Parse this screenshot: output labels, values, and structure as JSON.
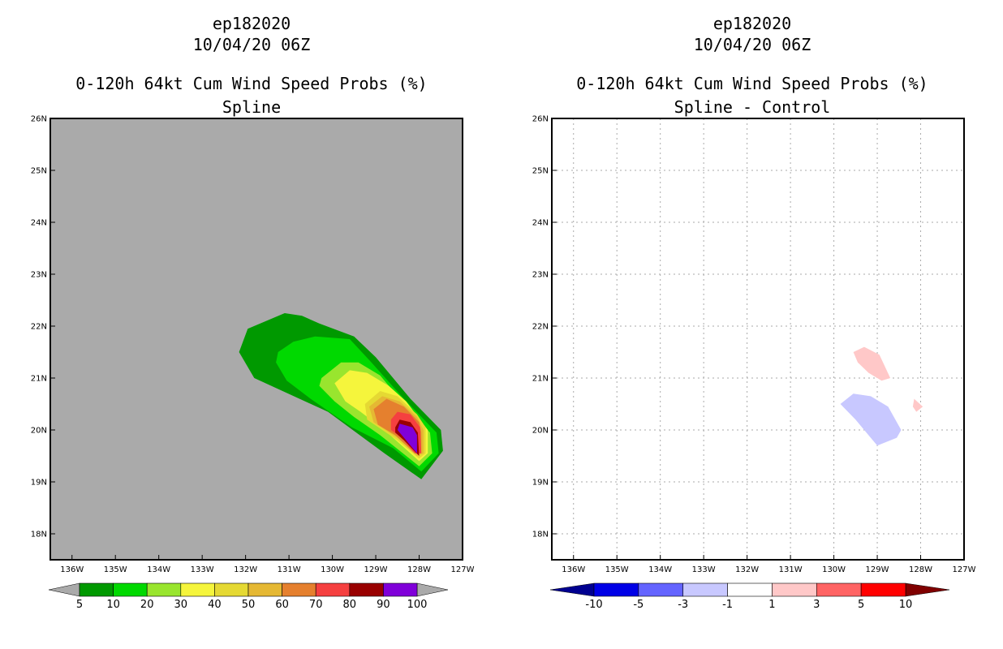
{
  "chart_data": [
    {
      "type": "contour",
      "title_line1": "ep182020",
      "title_line2": "10/04/20 06Z",
      "title_line3": "0-120h 64kt Cum Wind Speed Probs (%)",
      "subtitle": "Spline",
      "background_color": "#aaaaaa",
      "xlim": [
        -136.5,
        -127
      ],
      "ylim": [
        17.5,
        26
      ],
      "x_ticks": [
        {
          "value": -136,
          "label": "136W"
        },
        {
          "value": -135,
          "label": "135W"
        },
        {
          "value": -134,
          "label": "134W"
        },
        {
          "value": -133,
          "label": "133W"
        },
        {
          "value": -132,
          "label": "132W"
        },
        {
          "value": -131,
          "label": "131W"
        },
        {
          "value": -130,
          "label": "130W"
        },
        {
          "value": -129,
          "label": "129W"
        },
        {
          "value": -128,
          "label": "128W"
        },
        {
          "value": -127,
          "label": "127W"
        }
      ],
      "y_ticks": [
        {
          "value": 18,
          "label": "18N"
        },
        {
          "value": 19,
          "label": "19N"
        },
        {
          "value": 20,
          "label": "20N"
        },
        {
          "value": 21,
          "label": "21N"
        },
        {
          "value": 22,
          "label": "22N"
        },
        {
          "value": 23,
          "label": "23N"
        },
        {
          "value": 24,
          "label": "24N"
        },
        {
          "value": 25,
          "label": "25N"
        },
        {
          "value": 26,
          "label": "26N"
        }
      ],
      "grid": false,
      "contours": [
        {
          "level": 5,
          "color": "#009900",
          "points": [
            [
              -131.95,
              21.95
            ],
            [
              -131.1,
              22.25
            ],
            [
              -130.7,
              22.2
            ],
            [
              -130.3,
              22.05
            ],
            [
              -129.5,
              21.8
            ],
            [
              -129.0,
              21.4
            ],
            [
              -128.2,
              20.6
            ],
            [
              -127.5,
              20.0
            ],
            [
              -127.45,
              19.6
            ],
            [
              -127.95,
              19.05
            ],
            [
              -128.8,
              19.55
            ],
            [
              -130.1,
              20.35
            ],
            [
              -131.8,
              21.0
            ],
            [
              -132.15,
              21.5
            ]
          ]
        },
        {
          "level": 10,
          "color": "#00d900",
          "points": [
            [
              -131.25,
              21.5
            ],
            [
              -130.9,
              21.7
            ],
            [
              -130.4,
              21.8
            ],
            [
              -129.6,
              21.75
            ],
            [
              -129.1,
              21.3
            ],
            [
              -128.35,
              20.6
            ],
            [
              -127.6,
              19.95
            ],
            [
              -127.55,
              19.55
            ],
            [
              -127.95,
              19.2
            ],
            [
              -128.6,
              19.65
            ],
            [
              -129.55,
              20.05
            ],
            [
              -130.5,
              20.6
            ],
            [
              -131.05,
              20.95
            ],
            [
              -131.3,
              21.3
            ]
          ]
        },
        {
          "level": 20,
          "color": "#99e52e",
          "points": [
            [
              -130.25,
              21.0
            ],
            [
              -129.8,
              21.3
            ],
            [
              -129.4,
              21.3
            ],
            [
              -128.9,
              21.05
            ],
            [
              -128.45,
              20.6
            ],
            [
              -127.75,
              19.95
            ],
            [
              -127.7,
              19.55
            ],
            [
              -128.0,
              19.3
            ],
            [
              -128.9,
              19.9
            ],
            [
              -129.5,
              20.25
            ],
            [
              -129.95,
              20.55
            ],
            [
              -130.3,
              20.85
            ]
          ]
        },
        {
          "level": 30,
          "color": "#f5f53c",
          "points": [
            [
              -129.95,
              20.9
            ],
            [
              -129.6,
              21.15
            ],
            [
              -129.2,
              21.1
            ],
            [
              -128.7,
              20.85
            ],
            [
              -128.3,
              20.55
            ],
            [
              -127.8,
              20.0
            ],
            [
              -127.8,
              19.55
            ],
            [
              -128.0,
              19.4
            ],
            [
              -128.8,
              20.0
            ],
            [
              -129.35,
              20.35
            ],
            [
              -129.7,
              20.55
            ]
          ]
        },
        {
          "level": 40,
          "color": "#e5d933",
          "points": [
            [
              -129.25,
              20.5
            ],
            [
              -128.9,
              20.75
            ],
            [
              -128.5,
              20.65
            ],
            [
              -128.05,
              20.3
            ],
            [
              -127.85,
              20.05
            ],
            [
              -127.85,
              19.55
            ],
            [
              -128.0,
              19.45
            ],
            [
              -128.5,
              19.8
            ],
            [
              -129.2,
              20.2
            ]
          ]
        },
        {
          "level": 50,
          "color": "#e5b833",
          "points": [
            [
              -129.15,
              20.45
            ],
            [
              -128.85,
              20.65
            ],
            [
              -128.45,
              20.55
            ],
            [
              -128.05,
              20.25
            ],
            [
              -127.9,
              20.0
            ],
            [
              -127.9,
              19.55
            ],
            [
              -128.05,
              19.5
            ],
            [
              -128.5,
              19.85
            ],
            [
              -129.05,
              20.15
            ]
          ]
        },
        {
          "level": 60,
          "color": "#e5802e",
          "points": [
            [
              -129.05,
              20.4
            ],
            [
              -128.75,
              20.6
            ],
            [
              -128.35,
              20.45
            ],
            [
              -128.0,
              20.15
            ],
            [
              -127.95,
              19.95
            ],
            [
              -127.95,
              19.55
            ],
            [
              -128.1,
              19.55
            ],
            [
              -128.55,
              19.9
            ],
            [
              -128.95,
              20.1
            ]
          ]
        },
        {
          "level": 70,
          "color": "#f54040",
          "points": [
            [
              -128.65,
              20.2
            ],
            [
              -128.5,
              20.35
            ],
            [
              -128.2,
              20.3
            ],
            [
              -127.98,
              20.05
            ],
            [
              -127.95,
              19.55
            ],
            [
              -128.1,
              19.55
            ],
            [
              -128.4,
              19.85
            ],
            [
              -128.65,
              20.0
            ]
          ]
        },
        {
          "level": 80,
          "color": "#990000",
          "points": [
            [
              -128.55,
              20.05
            ],
            [
              -128.45,
              20.2
            ],
            [
              -128.2,
              20.15
            ],
            [
              -128.03,
              19.95
            ],
            [
              -128.0,
              19.5
            ],
            [
              -128.35,
              19.8
            ],
            [
              -128.55,
              19.95
            ]
          ]
        },
        {
          "level": 90,
          "color": "#8000d9",
          "points": [
            [
              -128.5,
              20.0
            ],
            [
              -128.45,
              20.12
            ],
            [
              -128.15,
              20.05
            ],
            [
              -128.05,
              19.9
            ],
            [
              -128.05,
              19.55
            ],
            [
              -128.35,
              19.85
            ]
          ]
        }
      ],
      "colorbar": {
        "boundaries": [
          "5",
          "10",
          "20",
          "30",
          "40",
          "50",
          "60",
          "70",
          "80",
          "90",
          "100"
        ],
        "colors": [
          "#009900",
          "#00d900",
          "#99e52e",
          "#f5f53c",
          "#e5d933",
          "#e5b833",
          "#e5802e",
          "#f54040",
          "#990000",
          "#8000d9"
        ],
        "under_color": "#aaaaaa",
        "over_color": "#aaaaaa"
      }
    },
    {
      "type": "contour",
      "title_line1": "ep182020",
      "title_line2": "10/04/20 06Z",
      "title_line3": "0-120h 64kt Cum Wind Speed Probs (%)",
      "subtitle": "Spline - Control",
      "background_color": "#ffffff",
      "xlim": [
        -136.5,
        -127
      ],
      "ylim": [
        17.5,
        26
      ],
      "x_ticks": [
        {
          "value": -136,
          "label": "136W"
        },
        {
          "value": -135,
          "label": "135W"
        },
        {
          "value": -134,
          "label": "134W"
        },
        {
          "value": -133,
          "label": "133W"
        },
        {
          "value": -132,
          "label": "132W"
        },
        {
          "value": -131,
          "label": "131W"
        },
        {
          "value": -130,
          "label": "130W"
        },
        {
          "value": -129,
          "label": "129W"
        },
        {
          "value": -128,
          "label": "128W"
        },
        {
          "value": -127,
          "label": "127W"
        }
      ],
      "y_ticks": [
        {
          "value": 18,
          "label": "18N"
        },
        {
          "value": 19,
          "label": "19N"
        },
        {
          "value": 20,
          "label": "20N"
        },
        {
          "value": 21,
          "label": "21N"
        },
        {
          "value": 22,
          "label": "22N"
        },
        {
          "value": 23,
          "label": "23N"
        },
        {
          "value": 24,
          "label": "24N"
        },
        {
          "value": 25,
          "label": "25N"
        },
        {
          "value": 26,
          "label": "26N"
        }
      ],
      "grid": true,
      "contours": [
        {
          "level": "1 to 3",
          "color": "#ffc8c8",
          "points": [
            [
              -129.55,
              21.5
            ],
            [
              -129.3,
              21.6
            ],
            [
              -128.95,
              21.45
            ],
            [
              -128.7,
              21.0
            ],
            [
              -128.9,
              20.95
            ],
            [
              -129.2,
              21.1
            ],
            [
              -129.45,
              21.3
            ]
          ]
        },
        {
          "level": "1 to 3",
          "color": "#ffc8c8",
          "points": [
            [
              -128.15,
              20.6
            ],
            [
              -127.95,
              20.45
            ],
            [
              -128.1,
              20.35
            ],
            [
              -128.18,
              20.45
            ]
          ]
        },
        {
          "level": "-3 to -1",
          "color": "#c8c8ff",
          "points": [
            [
              -129.85,
              20.5
            ],
            [
              -129.55,
              20.7
            ],
            [
              -129.15,
              20.65
            ],
            [
              -128.75,
              20.45
            ],
            [
              -128.45,
              20.0
            ],
            [
              -128.55,
              19.85
            ],
            [
              -129.0,
              19.7
            ],
            [
              -129.15,
              19.85
            ],
            [
              -129.5,
              20.2
            ]
          ]
        }
      ],
      "colorbar": {
        "boundaries": [
          "-10",
          "-5",
          "-3",
          "-1",
          "1",
          "3",
          "5",
          "10"
        ],
        "colors": [
          "#0000e6",
          "#6464ff",
          "#c8c8ff",
          "#ffffff",
          "#ffc8c8",
          "#ff6464",
          "#ff0000"
        ],
        "under_color": "#000090",
        "over_color": "#800000"
      }
    }
  ]
}
